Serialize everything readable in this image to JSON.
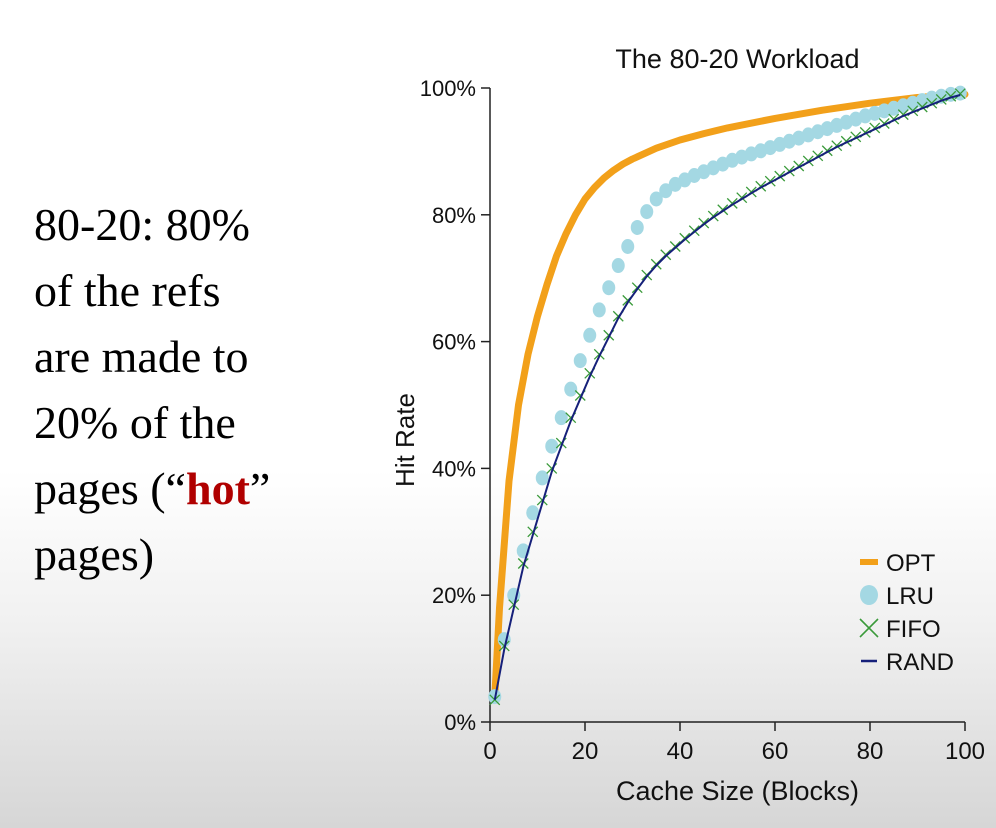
{
  "slide": {
    "line1": "80-20: 80%",
    "line2": "of the refs",
    "line3": "are made to",
    "line4": "20% of the",
    "line5_pre": "pages (“",
    "line5_hot": "hot",
    "line5_post": "”",
    "line6": "pages)"
  },
  "colors": {
    "opt": "#f2a01a",
    "lru": "#a4d8e3",
    "fifo": "#3a9a3a",
    "rand": "#16207a",
    "hot_text": "#b00000"
  },
  "chart_data": {
    "type": "line",
    "title": "The 80-20 Workload",
    "xlabel": "Cache Size (Blocks)",
    "ylabel": "Hit Rate",
    "xlim": [
      0,
      100
    ],
    "ylim": [
      0,
      100
    ],
    "x_ticks": [
      "0",
      "20",
      "40",
      "60",
      "80",
      "100"
    ],
    "y_ticks": [
      "0%",
      "20%",
      "40%",
      "60%",
      "80%",
      "100%"
    ],
    "legend_position": "bottom-right",
    "series": [
      {
        "name": "OPT",
        "marker": "line",
        "x": [
          1,
          2,
          4,
          6,
          8,
          10,
          12,
          14,
          16,
          18,
          20,
          22,
          24,
          26,
          28,
          30,
          35,
          40,
          45,
          50,
          60,
          70,
          80,
          90,
          100
        ],
        "y": [
          4,
          18,
          38,
          50,
          58,
          64,
          69,
          73.5,
          77,
          80,
          82.5,
          84.3,
          85.8,
          87,
          88,
          88.8,
          90.5,
          91.8,
          92.8,
          93.7,
          95.2,
          96.5,
          97.6,
          98.5,
          99
        ]
      },
      {
        "name": "LRU",
        "marker": "circle",
        "x": [
          1,
          3,
          5,
          7,
          9,
          11,
          13,
          15,
          17,
          19,
          21,
          23,
          25,
          27,
          29,
          31,
          33,
          35,
          37,
          39,
          41,
          43,
          45,
          47,
          49,
          51,
          53,
          55,
          57,
          59,
          61,
          63,
          65,
          67,
          69,
          71,
          73,
          75,
          77,
          79,
          81,
          83,
          85,
          87,
          89,
          91,
          93,
          95,
          97,
          99
        ],
        "y": [
          4,
          13,
          20,
          27,
          33,
          38.5,
          43.5,
          48,
          52.5,
          57,
          61,
          65,
          68.5,
          72,
          75,
          78,
          80.5,
          82.5,
          83.8,
          84.8,
          85.5,
          86.2,
          86.8,
          87.4,
          88,
          88.6,
          89.1,
          89.6,
          90.1,
          90.6,
          91.1,
          91.6,
          92.1,
          92.6,
          93.1,
          93.6,
          94.1,
          94.6,
          95.1,
          95.6,
          96.0,
          96.4,
          96.8,
          97.2,
          97.6,
          98.0,
          98.4,
          98.7,
          99.0,
          99.2
        ]
      },
      {
        "name": "FIFO",
        "marker": "x",
        "x": [
          1,
          3,
          5,
          7,
          9,
          11,
          13,
          15,
          17,
          19,
          21,
          23,
          25,
          27,
          29,
          31,
          33,
          35,
          37,
          39,
          41,
          43,
          45,
          47,
          49,
          51,
          53,
          55,
          57,
          59,
          61,
          63,
          65,
          67,
          69,
          71,
          73,
          75,
          77,
          79,
          81,
          83,
          85,
          87,
          89,
          91,
          93,
          95,
          97,
          99
        ],
        "y": [
          3.5,
          12,
          18.5,
          25,
          30,
          35,
          40,
          44,
          48,
          51.5,
          55,
          58,
          61,
          64,
          66.5,
          68.5,
          70.5,
          72.2,
          73.7,
          75,
          76.3,
          77.5,
          78.7,
          79.8,
          80.8,
          81.8,
          82.7,
          83.6,
          84.5,
          85.3,
          86.1,
          86.9,
          87.7,
          88.5,
          89.3,
          90.1,
          90.9,
          91.6,
          92.3,
          93.0,
          93.7,
          94.4,
          95.1,
          95.8,
          96.4,
          97.0,
          97.6,
          98.2,
          98.7,
          99.1
        ]
      },
      {
        "name": "RAND",
        "marker": "line",
        "x": [
          1,
          3,
          5,
          7,
          9,
          11,
          13,
          15,
          17,
          19,
          21,
          23,
          25,
          27,
          29,
          31,
          33,
          35,
          37,
          39,
          41,
          43,
          45,
          47,
          49,
          51,
          53,
          55,
          57,
          59,
          61,
          63,
          65,
          67,
          69,
          71,
          73,
          75,
          77,
          79,
          81,
          83,
          85,
          87,
          89,
          91,
          93,
          95,
          97,
          99
        ],
        "y": [
          3.5,
          11.5,
          18,
          24.5,
          29.5,
          34.5,
          39.5,
          43.5,
          47.5,
          51,
          54.5,
          57.7,
          60.7,
          63.7,
          66.2,
          68.3,
          70.3,
          72,
          73.5,
          74.8,
          76.1,
          77.3,
          78.5,
          79.6,
          80.6,
          81.6,
          82.5,
          83.4,
          84.3,
          85.1,
          85.9,
          86.7,
          87.5,
          88.3,
          89.1,
          89.9,
          90.7,
          91.4,
          92.1,
          92.8,
          93.5,
          94.2,
          94.9,
          95.6,
          96.2,
          96.8,
          97.4,
          98.0,
          98.5,
          98.9
        ]
      }
    ]
  }
}
